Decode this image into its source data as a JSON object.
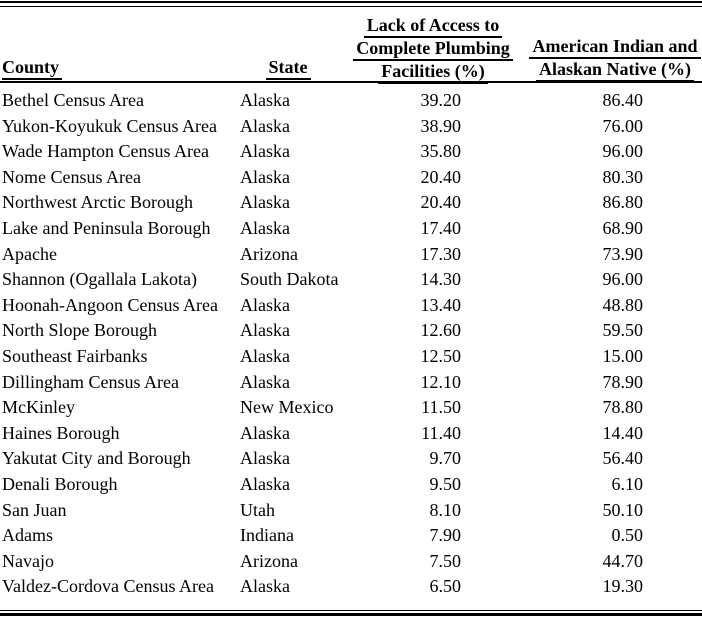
{
  "colors": {
    "background": "#ffffff",
    "text": "#000000",
    "rule": "#000000"
  },
  "table": {
    "columns": {
      "county": {
        "label": "County"
      },
      "state": {
        "label": "State"
      },
      "plumbing": {
        "line1": "Lack of Access to",
        "line2": "Complete Plumbing",
        "line3": "Facilities (%)"
      },
      "aian": {
        "line1": "American Indian and",
        "line2": "Alaskan Native (%)"
      }
    },
    "rows": [
      {
        "county": "Bethel Census Area",
        "state": "Alaska",
        "plumbing": "39.20",
        "aian": "86.40"
      },
      {
        "county": "Yukon-Koyukuk Census Area",
        "state": "Alaska",
        "plumbing": "38.90",
        "aian": "76.00"
      },
      {
        "county": "Wade Hampton Census Area",
        "state": "Alaska",
        "plumbing": "35.80",
        "aian": "96.00"
      },
      {
        "county": "Nome Census Area",
        "state": "Alaska",
        "plumbing": "20.40",
        "aian": "80.30"
      },
      {
        "county": "Northwest Arctic Borough",
        "state": "Alaska",
        "plumbing": "20.40",
        "aian": "86.80"
      },
      {
        "county": "Lake and Peninsula Borough",
        "state": "Alaska",
        "plumbing": "17.40",
        "aian": "68.90"
      },
      {
        "county": "Apache",
        "state": "Arizona",
        "plumbing": "17.30",
        "aian": "73.90"
      },
      {
        "county": "Shannon (Ogallala Lakota)",
        "state": "South Dakota",
        "plumbing": "14.30",
        "aian": "96.00"
      },
      {
        "county": "Hoonah-Angoon Census Area",
        "state": "Alaska",
        "plumbing": "13.40",
        "aian": "48.80"
      },
      {
        "county": "North Slope Borough",
        "state": "Alaska",
        "plumbing": "12.60",
        "aian": "59.50"
      },
      {
        "county": "Southeast Fairbanks",
        "state": "Alaska",
        "plumbing": "12.50",
        "aian": "15.00"
      },
      {
        "county": "Dillingham Census Area",
        "state": "Alaska",
        "plumbing": "12.10",
        "aian": "78.90"
      },
      {
        "county": "McKinley",
        "state": "New Mexico",
        "plumbing": "11.50",
        "aian": "78.80"
      },
      {
        "county": "Haines Borough",
        "state": "Alaska",
        "plumbing": "11.40",
        "aian": "14.40"
      },
      {
        "county": "Yakutat City and Borough",
        "state": "Alaska",
        "plumbing": "9.70",
        "aian": "56.40"
      },
      {
        "county": "Denali Borough",
        "state": "Alaska",
        "plumbing": "9.50",
        "aian": "6.10"
      },
      {
        "county": "San Juan",
        "state": "Utah",
        "plumbing": "8.10",
        "aian": "50.10"
      },
      {
        "county": "Adams",
        "state": "Indiana",
        "plumbing": "7.90",
        "aian": "0.50"
      },
      {
        "county": "Navajo",
        "state": "Arizona",
        "plumbing": "7.50",
        "aian": "44.70"
      },
      {
        "county": "Valdez-Cordova Census Area",
        "state": "Alaska",
        "plumbing": "6.50",
        "aian": "19.30"
      }
    ]
  }
}
